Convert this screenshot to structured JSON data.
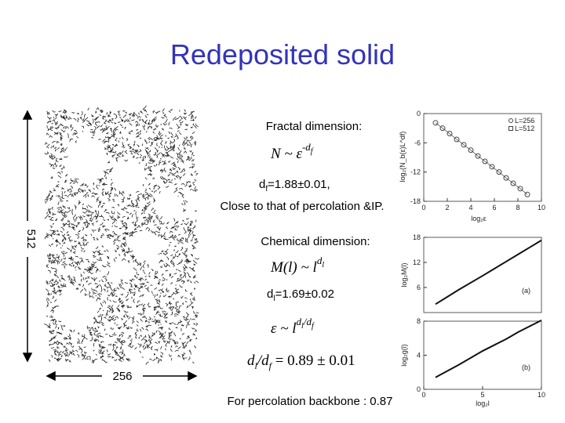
{
  "title": "Redeposited solid",
  "left_figure": {
    "height_label": "512",
    "width_label": "256"
  },
  "text": {
    "fractal_heading": "Fractal dimension:",
    "fractal_formula": {
      "lhs": "N ~ ε",
      "exp": "-d",
      "exp_sub": "f"
    },
    "df_value": {
      "sym": "d",
      "sub": "f",
      "rest": "=1.88±0.01,"
    },
    "close_note": "Close to that of percolation &IP.",
    "chemical_heading": "Chemical dimension:",
    "chemical_formula": {
      "lhs": "M(l) ~ l",
      "exp": "d",
      "exp_sub": "l"
    },
    "dl_value": {
      "sym": "d",
      "sub": "l",
      "rest": "=1.69±0.02"
    },
    "eps_formula": {
      "lhs": "ε ~ l",
      "exp": "d",
      "exp_sub": "l",
      "exp_mid": "/d",
      "exp_sub2": "f"
    },
    "ratio_formula": {
      "a": "d",
      "a_sub": "l",
      "b": "/d",
      "b_sub": "f",
      "rest": " = 0.89 ± 0.01"
    },
    "backbone_note": "For percolation backbone : 0.87"
  },
  "plot_top": {
    "xlabel": "log₂ε",
    "ylabel": "log₂(N_b(ε)L^df)",
    "xlim": [
      0,
      10
    ],
    "ylim": [
      -18,
      0
    ],
    "xticks": [
      0,
      2,
      4,
      6,
      8,
      10
    ],
    "yticks": [
      0,
      -6,
      -12,
      -18
    ],
    "legend": [
      "L=256",
      "L=512"
    ],
    "x": [
      1,
      1.6,
      2.2,
      2.8,
      3.4,
      4,
      4.6,
      5.2,
      5.8,
      6.4,
      7,
      7.6,
      8.2,
      8.8
    ],
    "y": [
      -1.9,
      -3,
      -4.1,
      -5.3,
      -6.4,
      -7.5,
      -8.7,
      -9.8,
      -10.9,
      -12,
      -13.2,
      -14.3,
      -15.4,
      -16.6
    ]
  },
  "plot_bottom": {
    "xlabel": "log₂l",
    "xlim": [
      0,
      10
    ],
    "xticks": [
      0,
      5,
      10
    ],
    "panels": [
      {
        "ylabel": "log₂M(l)",
        "tag": "(a)",
        "ylim": [
          0,
          18
        ],
        "yticks": [
          18,
          12,
          6
        ],
        "x": [
          1,
          3,
          5,
          6,
          7,
          8,
          9,
          10
        ],
        "y": [
          2,
          5.5,
          8.8,
          10.5,
          12.2,
          13.9,
          15.6,
          17.3
        ]
      },
      {
        "ylabel": "log₂g(l)",
        "tag": "(b)",
        "ylim": [
          0,
          8
        ],
        "yticks": [
          8,
          4,
          0
        ],
        "x": [
          1,
          3,
          5,
          6,
          7,
          8,
          9,
          10
        ],
        "y": [
          1.4,
          2.9,
          4.5,
          5.2,
          5.9,
          6.7,
          7.4,
          8.1
        ]
      }
    ]
  }
}
